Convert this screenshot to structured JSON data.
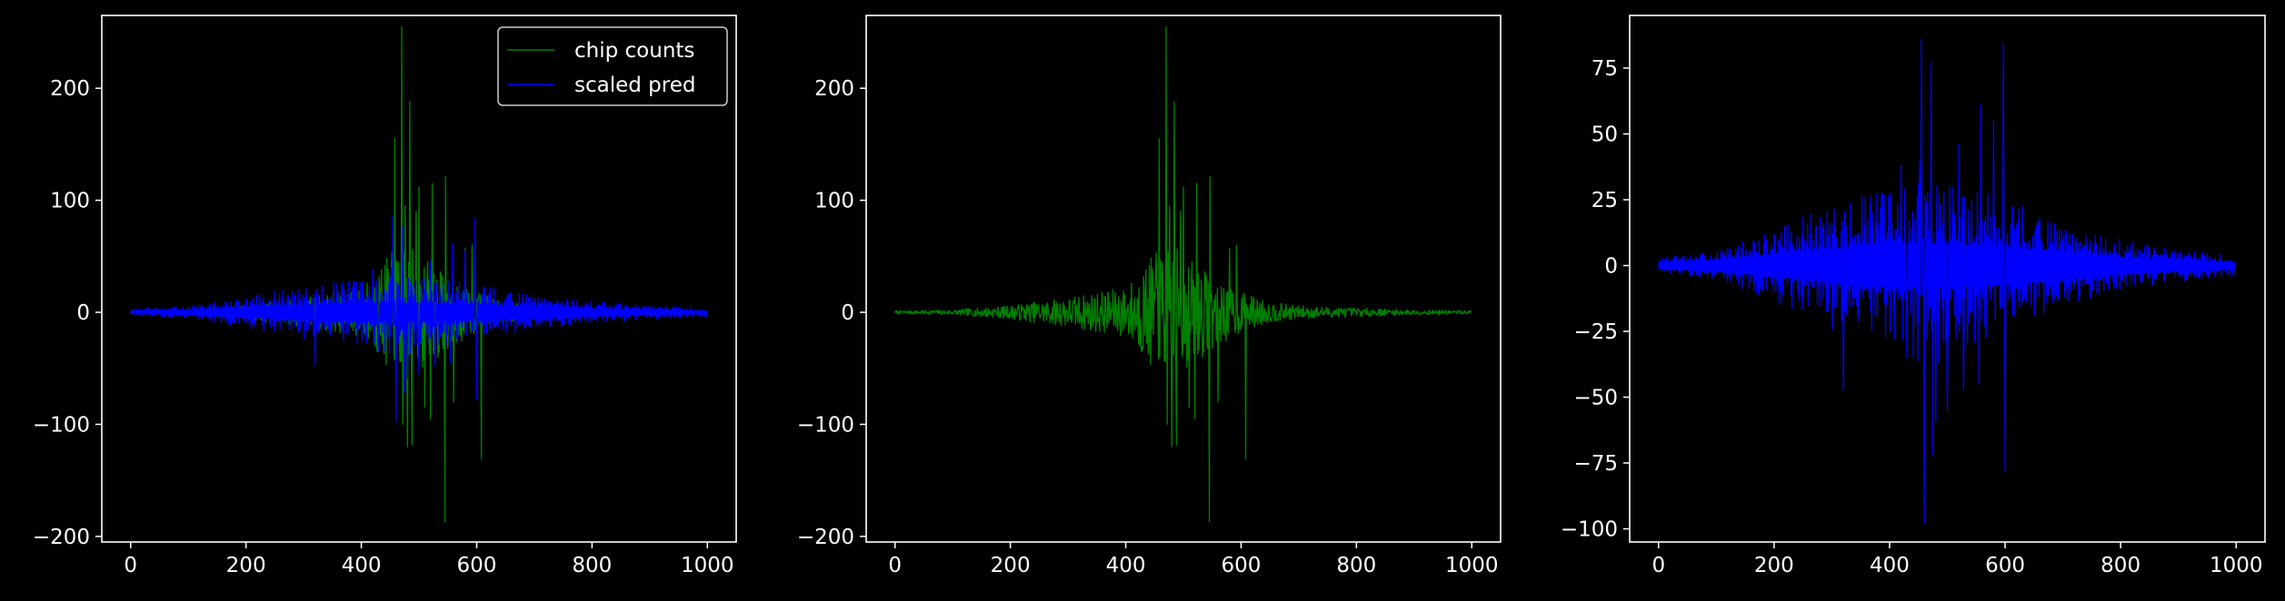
{
  "colors": {
    "background": "#000000",
    "axes": "#ffffff",
    "counts": "#008000",
    "pred": "#0000ff",
    "legend_bg": "#000000",
    "legend_border": "#cccccc"
  },
  "chart_data": [
    {
      "type": "line",
      "title": "",
      "xlabel": "",
      "ylabel": "",
      "xlim": [
        -50,
        1050
      ],
      "ylim": [
        -205,
        265
      ],
      "xticks": [
        0,
        200,
        400,
        600,
        800,
        1000
      ],
      "xtick_labels": [
        "0",
        "200",
        "400",
        "600",
        "800",
        "1000"
      ],
      "yticks": [
        -200,
        -100,
        0,
        100,
        200
      ],
      "ytick_labels": [
        "−200",
        "−100",
        "0",
        "100",
        "200"
      ],
      "legend": {
        "position": "upper right",
        "entries": [
          "chip counts",
          "scaled pred"
        ]
      },
      "series": [
        {
          "name": "chip counts",
          "color": "#008000",
          "envelope": "counts"
        },
        {
          "name": "scaled pred",
          "color": "#0000ff",
          "envelope": "pred"
        }
      ]
    },
    {
      "type": "line",
      "title": "",
      "xlabel": "",
      "ylabel": "",
      "xlim": [
        -50,
        1050
      ],
      "ylim": [
        -205,
        265
      ],
      "xticks": [
        0,
        200,
        400,
        600,
        800,
        1000
      ],
      "xtick_labels": [
        "0",
        "200",
        "400",
        "600",
        "800",
        "1000"
      ],
      "yticks": [
        -200,
        -100,
        0,
        100,
        200
      ],
      "ytick_labels": [
        "−200",
        "−100",
        "0",
        "100",
        "200"
      ],
      "series": [
        {
          "name": "chip counts",
          "color": "#008000",
          "envelope": "counts"
        }
      ]
    },
    {
      "type": "line",
      "title": "",
      "xlabel": "",
      "ylabel": "",
      "xlim": [
        -50,
        1050
      ],
      "ylim": [
        -105,
        95
      ],
      "xticks": [
        0,
        200,
        400,
        600,
        800,
        1000
      ],
      "xtick_labels": [
        "0",
        "200",
        "400",
        "600",
        "800",
        "1000"
      ],
      "yticks": [
        -100,
        -75,
        -50,
        -25,
        0,
        25,
        50,
        75
      ],
      "ytick_labels": [
        "−100",
        "−75",
        "−50",
        "−25",
        "0",
        "25",
        "50",
        "75"
      ],
      "series": [
        {
          "name": "scaled pred",
          "color": "#0000ff",
          "envelope": "pred"
        }
      ]
    }
  ],
  "signal_envelopes": {
    "n_points": 1000,
    "counts": {
      "envelope_max": [
        [
          0,
          2
        ],
        [
          100,
          3
        ],
        [
          200,
          8
        ],
        [
          300,
          18
        ],
        [
          400,
          30
        ],
        [
          450,
          70
        ],
        [
          480,
          80
        ],
        [
          520,
          60
        ],
        [
          560,
          40
        ],
        [
          600,
          25
        ],
        [
          650,
          12
        ],
        [
          700,
          8
        ],
        [
          800,
          5
        ],
        [
          900,
          3
        ],
        [
          1000,
          2
        ]
      ],
      "peaks": [
        [
          458,
          155
        ],
        [
          470,
          255
        ],
        [
          476,
          95
        ],
        [
          484,
          188
        ],
        [
          495,
          90
        ],
        [
          500,
          112
        ],
        [
          523,
          115
        ],
        [
          546,
          121
        ],
        [
          580,
          57
        ],
        [
          592,
          60
        ]
      ],
      "troughs": [
        [
          472,
          -100
        ],
        [
          480,
          -120
        ],
        [
          488,
          -118
        ],
        [
          510,
          -85
        ],
        [
          520,
          -95
        ],
        [
          545,
          -187
        ],
        [
          560,
          -80
        ],
        [
          608,
          -131
        ]
      ]
    },
    "pred": {
      "baseline": [
        [
          0,
          1
        ],
        [
          100,
          2
        ],
        [
          200,
          4
        ],
        [
          300,
          6
        ],
        [
          400,
          8
        ],
        [
          500,
          8
        ],
        [
          600,
          7
        ],
        [
          700,
          5
        ],
        [
          800,
          3
        ],
        [
          900,
          2
        ],
        [
          1000,
          1
        ]
      ],
      "envelope_max": [
        [
          0,
          3
        ],
        [
          100,
          5
        ],
        [
          200,
          14
        ],
        [
          300,
          24
        ],
        [
          400,
          30
        ],
        [
          450,
          40
        ],
        [
          500,
          35
        ],
        [
          560,
          30
        ],
        [
          600,
          28
        ],
        [
          650,
          20
        ],
        [
          700,
          15
        ],
        [
          800,
          10
        ],
        [
          900,
          6
        ],
        [
          1000,
          4
        ]
      ],
      "peaks": [
        [
          320,
          33
        ],
        [
          420,
          38
        ],
        [
          455,
          86
        ],
        [
          472,
          77
        ],
        [
          480,
          72
        ],
        [
          500,
          58
        ],
        [
          520,
          46
        ],
        [
          558,
          61
        ],
        [
          580,
          55
        ],
        [
          597,
          84
        ]
      ],
      "troughs": [
        [
          320,
          -47
        ],
        [
          430,
          -35
        ],
        [
          460,
          -98
        ],
        [
          475,
          -72
        ],
        [
          480,
          -59
        ],
        [
          500,
          -55
        ],
        [
          528,
          -47
        ],
        [
          555,
          -45
        ],
        [
          600,
          -78
        ]
      ]
    }
  }
}
